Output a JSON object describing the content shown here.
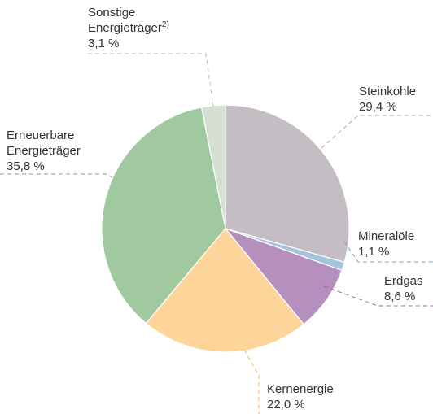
{
  "chart_data": {
    "type": "pie",
    "categories": [
      "Steinkohle",
      "Mineralöle",
      "Erdgas",
      "Kernenergie",
      "Erneuerbare Energieträger",
      "Sonstige Energieträger"
    ],
    "category_notes": [
      null,
      null,
      null,
      null,
      null,
      "2)"
    ],
    "values": [
      29.4,
      1.1,
      8.6,
      22.0,
      35.8,
      3.1
    ],
    "value_labels": [
      "29,4 %",
      "1,1 %",
      "8,6 %",
      "22,0 %",
      "35,8 %",
      "3,1 %"
    ],
    "colors": [
      "#c4bdc3",
      "#a4c3dc",
      "#b58fbe",
      "#fdd59b",
      "#a1c99f",
      "#d7dfd3"
    ]
  }
}
